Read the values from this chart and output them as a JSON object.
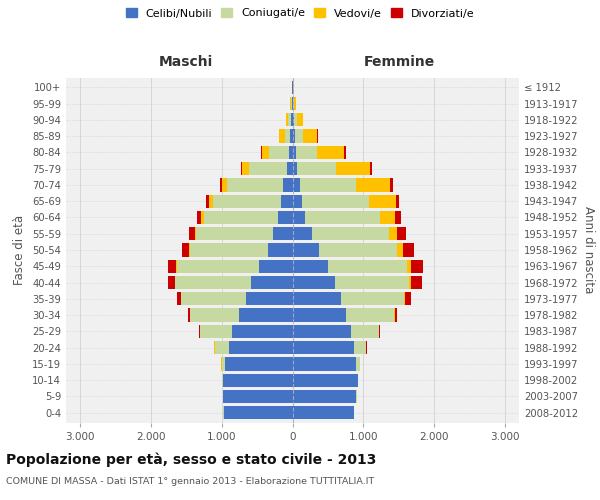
{
  "age_groups": [
    "0-4",
    "5-9",
    "10-14",
    "15-19",
    "20-24",
    "25-29",
    "30-34",
    "35-39",
    "40-44",
    "45-49",
    "50-54",
    "55-59",
    "60-64",
    "65-69",
    "70-74",
    "75-79",
    "80-84",
    "85-89",
    "90-94",
    "95-99",
    "100+"
  ],
  "birth_years": [
    "2008-2012",
    "2003-2007",
    "1998-2002",
    "1993-1997",
    "1988-1992",
    "1983-1987",
    "1978-1982",
    "1973-1977",
    "1968-1972",
    "1963-1967",
    "1958-1962",
    "1953-1957",
    "1948-1952",
    "1943-1947",
    "1938-1942",
    "1933-1937",
    "1928-1932",
    "1923-1927",
    "1918-1922",
    "1913-1917",
    "≤ 1912"
  ],
  "maschi_celibi": [
    970,
    980,
    980,
    950,
    900,
    850,
    750,
    650,
    580,
    480,
    350,
    280,
    200,
    160,
    130,
    80,
    50,
    30,
    20,
    10,
    5
  ],
  "maschi_coniugati": [
    5,
    5,
    10,
    50,
    200,
    450,
    700,
    920,
    1080,
    1150,
    1100,
    1080,
    1050,
    960,
    790,
    530,
    280,
    80,
    40,
    15,
    5
  ],
  "maschi_vedovi": [
    0,
    0,
    0,
    5,
    5,
    5,
    5,
    5,
    5,
    10,
    15,
    20,
    40,
    60,
    80,
    100,
    100,
    80,
    30,
    5,
    2
  ],
  "maschi_divorziati": [
    0,
    0,
    0,
    0,
    5,
    10,
    20,
    50,
    100,
    120,
    100,
    80,
    60,
    40,
    30,
    20,
    10,
    5,
    0,
    0,
    0
  ],
  "femmine_celibi": [
    870,
    900,
    920,
    900,
    870,
    820,
    760,
    680,
    600,
    500,
    380,
    280,
    180,
    130,
    100,
    70,
    50,
    30,
    20,
    10,
    5
  ],
  "femmine_coniugati": [
    5,
    5,
    10,
    50,
    170,
    400,
    680,
    900,
    1050,
    1120,
    1100,
    1080,
    1050,
    950,
    800,
    550,
    300,
    120,
    50,
    15,
    5
  ],
  "femmine_vedovi": [
    0,
    0,
    0,
    0,
    5,
    5,
    5,
    15,
    30,
    50,
    80,
    120,
    220,
    380,
    480,
    480,
    380,
    200,
    80,
    20,
    5
  ],
  "femmine_divorziati": [
    0,
    0,
    0,
    0,
    5,
    10,
    30,
    80,
    150,
    180,
    160,
    120,
    80,
    50,
    40,
    30,
    20,
    5,
    0,
    0,
    0
  ],
  "color_celibi": "#4472c4",
  "color_coniugati": "#c5d9a0",
  "color_vedovi": "#ffc000",
  "color_divorziati": "#cc0000",
  "title": "Popolazione per età, sesso e stato civile - 2013",
  "subtitle": "COMUNE DI MASSA - Dati ISTAT 1° gennaio 2013 - Elaborazione TUTTITALIA.IT",
  "xlabel_left": "Maschi",
  "xlabel_right": "Femmine",
  "ylabel_left": "Fasce di età",
  "ylabel_right": "Anni di nascita",
  "xlim": 3200,
  "background_color": "#f0f0f0"
}
